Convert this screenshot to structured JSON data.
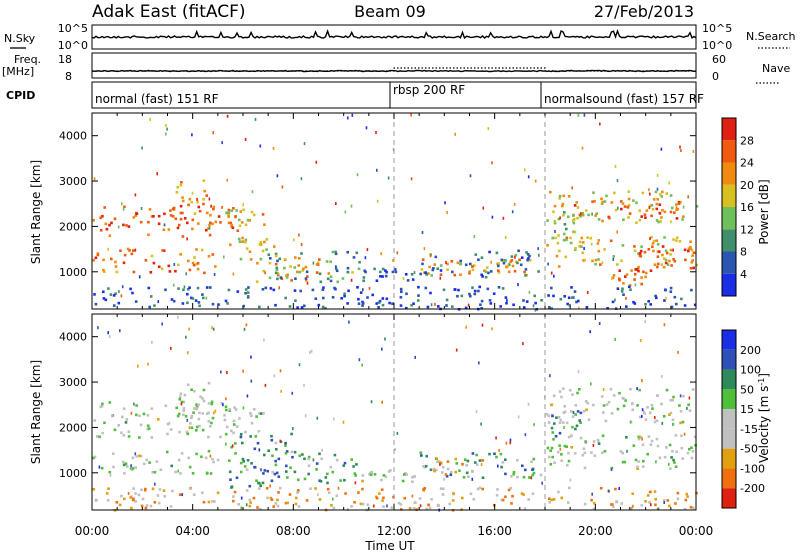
{
  "header": {
    "station": "Adak East (fitACF)",
    "beam": "Beam 09",
    "date": "27/Feb/2013"
  },
  "top_panels": {
    "nsky_label": "N.Sky",
    "nsky_ticks": [
      "10^5",
      "10^0"
    ],
    "nsearch_label": "N.Search",
    "nsearch_ticks": [
      "10^5",
      "10^0"
    ],
    "freq_label": "Freq.",
    "freq_unit": "[MHz]",
    "freq_ticks": [
      "18",
      "8"
    ],
    "nave_label": "Nave",
    "nave_ticks": [
      "60",
      "0"
    ],
    "cpid_label": "CPID",
    "cpid_segments": [
      {
        "label": "normal (fast) 151 RF",
        "start_hour": 0,
        "end_hour": 12
      },
      {
        "label": "rbsp 200 RF",
        "start_hour": 12,
        "end_hour": 18
      },
      {
        "label": "normalsound (fast) 157 RF",
        "start_hour": 18,
        "end_hour": 24
      }
    ]
  },
  "axes": {
    "x_ticks": [
      "00:00",
      "04:00",
      "08:00",
      "12:00",
      "16:00",
      "20:00",
      "00:00"
    ],
    "xlabel": "Time UT",
    "ylabel": "Slant Range [km]",
    "y_ticks": [
      "1000",
      "2000",
      "3000",
      "4000"
    ]
  },
  "power_scale": {
    "label": "Power [dB]",
    "ticks": [
      "4",
      "8",
      "12",
      "16",
      "20",
      "24",
      "28"
    ],
    "colors": [
      "#1a2ee6",
      "#2a55b0",
      "#3f8f6a",
      "#6fbf5a",
      "#d8c020",
      "#f08a10",
      "#f05a10",
      "#e02010"
    ]
  },
  "velocity_scale": {
    "label": "Velocity [m s",
    "label_sup": "-1",
    "label_end": "]",
    "ticks": [
      "200",
      "100",
      "50",
      "15",
      "-15",
      "-50",
      "-100",
      "-200"
    ],
    "colors": [
      "#1a2ee6",
      "#3050b8",
      "#2f8a5a",
      "#4fbf3a",
      "#c0c0c0",
      "#c0c0c0",
      "#e0a010",
      "#f07010",
      "#e02010"
    ]
  },
  "chart_data": [
    {
      "type": "heatmap",
      "name": "Power",
      "x_range_hours": [
        0,
        24
      ],
      "ylim_km": [
        180,
        4500
      ],
      "dashed_lines_hours": [
        12,
        18
      ],
      "blobs": [
        {
          "t0": 0.0,
          "t1": 5.9,
          "r0": 1800,
          "r1": 2500,
          "level": 0.82
        },
        {
          "t0": 0.0,
          "t1": 5.0,
          "r0": 1000,
          "r1": 1550,
          "level": 0.75
        },
        {
          "t0": 3.3,
          "t1": 4.6,
          "r0": 2300,
          "r1": 3050,
          "level": 0.7
        },
        {
          "t0": 5.2,
          "t1": 6.8,
          "r0": 2000,
          "r1": 2400,
          "level": 0.6
        },
        {
          "t0": 5.4,
          "t1": 7.2,
          "r0": 1300,
          "r1": 1800,
          "level": 0.55
        },
        {
          "t0": 6.5,
          "t1": 9.5,
          "r0": 800,
          "r1": 1350,
          "level": 0.7
        },
        {
          "t0": 6.8,
          "t1": 10.6,
          "r0": 800,
          "r1": 1500,
          "level": 0.35
        },
        {
          "t0": 10.5,
          "t1": 12.8,
          "r0": 830,
          "r1": 1100,
          "level": 0.2
        },
        {
          "t0": 13.0,
          "t1": 15.2,
          "r0": 950,
          "r1": 1300,
          "level": 0.7
        },
        {
          "t0": 15.5,
          "t1": 17.5,
          "r0": 950,
          "r1": 1300,
          "level": 0.7
        },
        {
          "t0": 13.0,
          "t1": 17.8,
          "r0": 900,
          "r1": 1500,
          "level": 0.25
        },
        {
          "t0": 18.0,
          "t1": 24.0,
          "r0": 2100,
          "r1": 2800,
          "level": 0.55
        },
        {
          "t0": 19.0,
          "t1": 23.5,
          "r0": 2200,
          "r1": 2600,
          "level": 0.85
        },
        {
          "t0": 18.0,
          "t1": 24.0,
          "r0": 1100,
          "r1": 1800,
          "level": 0.6
        },
        {
          "t0": 21.5,
          "t1": 24.0,
          "r0": 1000,
          "r1": 1600,
          "level": 0.85
        },
        {
          "t0": 20.5,
          "t1": 22.0,
          "r0": 700,
          "r1": 1100,
          "level": 0.8
        },
        {
          "t0": 18.3,
          "t1": 19.5,
          "r0": 1500,
          "r1": 2400,
          "level": 0.45
        },
        {
          "t0": 0.0,
          "t1": 24.0,
          "r0": 200,
          "r1": 700,
          "level": 0.15
        }
      ]
    },
    {
      "type": "heatmap",
      "name": "Velocity",
      "x_range_hours": [
        0,
        24
      ],
      "ylim_km": [
        180,
        4500
      ],
      "dashed_lines_hours": [
        12,
        18
      ],
      "blobs": [
        {
          "t0": 0.0,
          "t1": 5.9,
          "r0": 1800,
          "r1": 2600,
          "level": 0.5
        },
        {
          "t0": 0.0,
          "t1": 5.0,
          "r0": 1000,
          "r1": 1550,
          "level": 0.5
        },
        {
          "t0": 3.3,
          "t1": 4.6,
          "r0": 2300,
          "r1": 3050,
          "level": 0.5
        },
        {
          "t0": 5.2,
          "t1": 6.8,
          "r0": 1900,
          "r1": 2500,
          "level": 0.5
        },
        {
          "t0": 5.4,
          "t1": 8.0,
          "r0": 700,
          "r1": 1900,
          "level": 0.3
        },
        {
          "t0": 7.0,
          "t1": 10.6,
          "r0": 800,
          "r1": 1500,
          "level": 0.33
        },
        {
          "t0": 10.5,
          "t1": 12.8,
          "r0": 830,
          "r1": 1100,
          "level": 0.5
        },
        {
          "t0": 13.0,
          "t1": 17.8,
          "r0": 900,
          "r1": 1500,
          "level": 0.33
        },
        {
          "t0": 13.5,
          "t1": 15.5,
          "r0": 950,
          "r1": 1350,
          "level": 0.65
        },
        {
          "t0": 18.0,
          "t1": 24.0,
          "r0": 2100,
          "r1": 2900,
          "level": 0.5
        },
        {
          "t0": 18.0,
          "t1": 24.0,
          "r0": 1100,
          "r1": 1900,
          "level": 0.5
        },
        {
          "t0": 18.2,
          "t1": 19.4,
          "r0": 1700,
          "r1": 2500,
          "level": 0.33
        },
        {
          "t0": 0.0,
          "t1": 24.0,
          "r0": 200,
          "r1": 700,
          "level": 0.7
        }
      ]
    }
  ]
}
